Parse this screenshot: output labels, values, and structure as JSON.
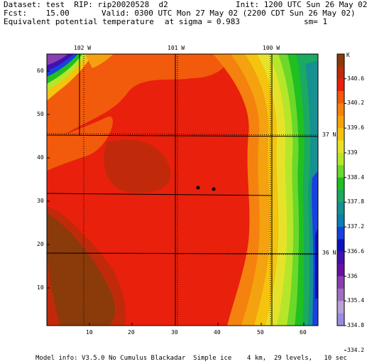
{
  "header": {
    "line1_left": "Dataset: test  RIP: rip20020528  d2",
    "line1_right": "Init: 1200 UTC Sun 26 May 02",
    "line2_left": "Fcst:    15.00",
    "line2_right": "Valid: 0300 UTC Mon 27 May 02 (2200 CDT Sun 26 May 02)",
    "line3_left": "Equivalent potential temperature",
    "line3_mid": "at sigma = 0.983",
    "line3_right": "sm= 1"
  },
  "top_longitudes": [
    "102 W",
    "101 W",
    "100 W"
  ],
  "right_latitudes": [
    "37 N",
    "36 N"
  ],
  "x_ticks": [
    "10",
    "20",
    "30",
    "40",
    "50",
    "60"
  ],
  "y_ticks": [
    "10",
    "20",
    "30",
    "40",
    "50",
    "60"
  ],
  "colorbar": {
    "unit": "K",
    "labels": [
      "340.6",
      "340.2",
      "339.6",
      "339",
      "338.4",
      "337.8",
      "337.2",
      "336.6",
      "336",
      "335.4",
      "334.8",
      "334.2"
    ],
    "colors": [
      "#8b3a0a",
      "#c02a0a",
      "#e8200c",
      "#f25a0c",
      "#f5820f",
      "#f4a20f",
      "#f4c40f",
      "#e6e22a",
      "#b6e62a",
      "#6cd82a",
      "#20c020",
      "#1aaa60",
      "#169090",
      "#0a80b0",
      "#1a40e0",
      "#1010c0",
      "#4010b0",
      "#6a10a0",
      "#8a40b0",
      "#a070c0",
      "#b8a0d8",
      "#9a8ae0"
    ]
  },
  "footer": "Model info: V3.5.0 No Cumulus Blackadar  Simple ice    4 km,  29 levels,   10 sec"
}
